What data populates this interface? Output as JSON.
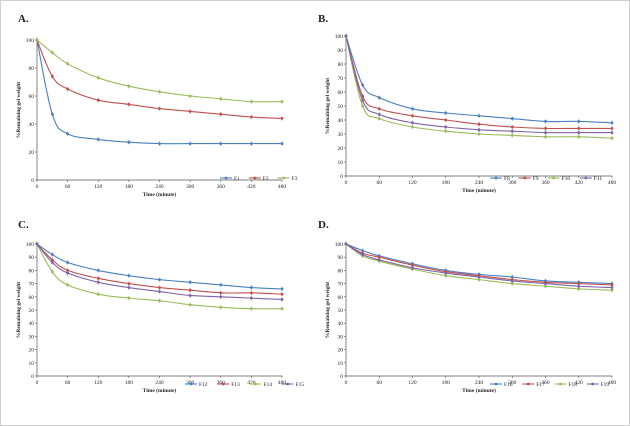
{
  "chart_data": [
    {
      "type": "line",
      "panel_label": "A.",
      "xlabel": "Time (minute)",
      "ylabel": "%Remaining gel weight",
      "xlim": [
        0,
        480
      ],
      "ylim": [
        0,
        100
      ],
      "x_ticks": [
        0,
        60,
        120,
        180,
        240,
        300,
        360,
        420,
        480
      ],
      "y_ticks": [
        0,
        20,
        40,
        60,
        80,
        100
      ],
      "grid": false,
      "legend_position": "bottom-right",
      "x": [
        0,
        30,
        60,
        120,
        180,
        240,
        300,
        360,
        420,
        480
      ],
      "series": [
        {
          "name": "F1",
          "color": "#4a7fc1",
          "values": [
            100,
            47,
            33,
            29,
            27,
            26,
            26,
            26,
            26,
            26
          ]
        },
        {
          "name": "F2",
          "color": "#c0504d",
          "values": [
            100,
            74,
            65,
            57,
            54,
            51,
            49,
            47,
            45,
            44
          ]
        },
        {
          "name": "F3",
          "color": "#9bbb59",
          "values": [
            100,
            91,
            83,
            73,
            67,
            63,
            60,
            58,
            56,
            56
          ]
        }
      ]
    },
    {
      "type": "line",
      "panel_label": "B.",
      "xlabel": "Time (minute)",
      "ylabel": "%Remaining gel weight",
      "xlim": [
        0,
        480
      ],
      "ylim": [
        0,
        100
      ],
      "x_ticks": [
        0,
        60,
        120,
        180,
        240,
        300,
        360,
        420,
        480
      ],
      "y_ticks": [
        0,
        10,
        20,
        30,
        40,
        50,
        60,
        70,
        80,
        90,
        100
      ],
      "grid": false,
      "legend_position": "bottom-right",
      "x": [
        0,
        30,
        60,
        120,
        180,
        240,
        300,
        360,
        420,
        480
      ],
      "series": [
        {
          "name": "F8",
          "color": "#4a7fc1",
          "values": [
            100,
            65,
            56,
            48,
            45,
            43,
            41,
            39,
            39,
            38
          ]
        },
        {
          "name": "F9",
          "color": "#c0504d",
          "values": [
            100,
            57,
            48,
            43,
            40,
            37,
            35,
            34,
            34,
            34
          ]
        },
        {
          "name": "F10",
          "color": "#9bbb59",
          "values": [
            100,
            50,
            41,
            35,
            32,
            30,
            29,
            28,
            28,
            27
          ]
        },
        {
          "name": "F11",
          "color": "#7e63a8",
          "values": [
            100,
            54,
            44,
            38,
            35,
            33,
            32,
            31,
            31,
            31
          ]
        }
      ]
    },
    {
      "type": "line",
      "panel_label": "C.",
      "xlabel": "Time (minute)",
      "ylabel": "%Remaining gel weight",
      "xlim": [
        0,
        480
      ],
      "ylim": [
        0,
        100
      ],
      "x_ticks": [
        0,
        60,
        120,
        180,
        240,
        300,
        360,
        420,
        480
      ],
      "y_ticks": [
        0,
        10,
        20,
        30,
        40,
        50,
        60,
        70,
        80,
        90,
        100
      ],
      "grid": false,
      "legend_position": "bottom-right",
      "x": [
        0,
        30,
        60,
        120,
        180,
        240,
        300,
        360,
        420,
        480
      ],
      "series": [
        {
          "name": "F12",
          "color": "#4a7fc1",
          "values": [
            100,
            92,
            86,
            80,
            76,
            73,
            71,
            69,
            67,
            66
          ]
        },
        {
          "name": "F13",
          "color": "#c0504d",
          "values": [
            100,
            88,
            80,
            74,
            70,
            67,
            65,
            63,
            63,
            62
          ]
        },
        {
          "name": "F14",
          "color": "#9bbb59",
          "values": [
            100,
            79,
            69,
            62,
            59,
            57,
            54,
            52,
            51,
            51
          ]
        },
        {
          "name": "F15",
          "color": "#7e63a8",
          "values": [
            100,
            86,
            78,
            71,
            67,
            64,
            61,
            60,
            59,
            58
          ]
        }
      ]
    },
    {
      "type": "line",
      "panel_label": "D.",
      "xlabel": "Time (minute)",
      "ylabel": "%Remaining gel weight",
      "xlim": [
        0,
        480
      ],
      "ylim": [
        0,
        100
      ],
      "x_ticks": [
        0,
        60,
        120,
        180,
        240,
        300,
        360,
        420,
        480
      ],
      "y_ticks": [
        0,
        10,
        20,
        30,
        40,
        50,
        60,
        70,
        80,
        90,
        100
      ],
      "grid": false,
      "legend_position": "bottom-right",
      "x": [
        0,
        30,
        60,
        120,
        180,
        240,
        300,
        360,
        420,
        480
      ],
      "series": [
        {
          "name": "F16",
          "color": "#4a7fc1",
          "values": [
            100,
            95,
            91,
            85,
            80,
            77,
            75,
            72,
            71,
            70
          ]
        },
        {
          "name": "F17",
          "color": "#c0504d",
          "values": [
            100,
            93,
            90,
            84,
            79,
            76,
            73,
            71,
            70,
            69
          ]
        },
        {
          "name": "F18",
          "color": "#9bbb59",
          "values": [
            100,
            91,
            87,
            81,
            76,
            73,
            70,
            68,
            66,
            65
          ]
        },
        {
          "name": "F19",
          "color": "#7e63a8",
          "values": [
            100,
            92,
            88,
            82,
            78,
            75,
            72,
            70,
            68,
            67
          ]
        }
      ]
    }
  ]
}
